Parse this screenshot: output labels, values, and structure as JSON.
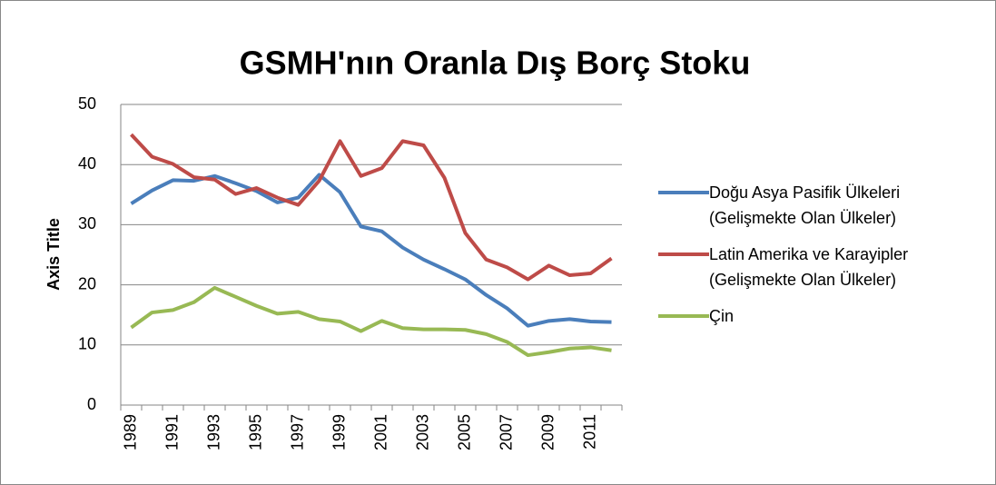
{
  "chart_data": {
    "type": "line",
    "title": "GSMH'nın Oranla Dış Borç Stoku",
    "y_label": "Axis Title",
    "categories": [
      "1989",
      null,
      "1991",
      null,
      "1993",
      null,
      "1995",
      null,
      "1997",
      null,
      "1999",
      null,
      "2001",
      null,
      "2003",
      null,
      "2005",
      null,
      "2007",
      null,
      "2009",
      null,
      "2011",
      null
    ],
    "series": [
      {
        "name": "Doğu Asya Pasifik Ülkeleri (Gelişmekte Olan Ülkeler)",
        "color": "#4a7ebb",
        "values": [
          33.5,
          35.7,
          37.4,
          37.3,
          38.1,
          36.9,
          35.6,
          33.7,
          34.5,
          38.3,
          35.4,
          29.7,
          28.9,
          26.2,
          24.2,
          22.6,
          20.9,
          18.3,
          16.1,
          13.2,
          14.0,
          14.3,
          13.9,
          13.8
        ]
      },
      {
        "name": "Latin Amerika ve Karayipler (Gelişmekte Olan Ülkeler)",
        "color": "#be4b48",
        "values": [
          45.0,
          41.3,
          40.1,
          37.9,
          37.5,
          35.1,
          36.1,
          34.5,
          33.3,
          37.3,
          43.9,
          38.1,
          39.4,
          43.9,
          43.2,
          37.8,
          28.6,
          24.2,
          22.9,
          20.9,
          23.2,
          21.6,
          21.9,
          24.4
        ]
      },
      {
        "name": "Çin",
        "color": "#98b954",
        "values": [
          12.9,
          15.4,
          15.8,
          17.1,
          19.5,
          18.0,
          16.5,
          15.2,
          15.5,
          14.3,
          13.9,
          12.3,
          14.0,
          12.8,
          12.6,
          12.6,
          12.5,
          11.8,
          10.5,
          8.3,
          8.8,
          9.4,
          9.6,
          9.1
        ]
      }
    ],
    "ylim": [
      0,
      50
    ],
    "yticks": [
      0,
      10,
      20,
      30,
      40,
      50
    ],
    "grid": true,
    "legend": "right"
  }
}
